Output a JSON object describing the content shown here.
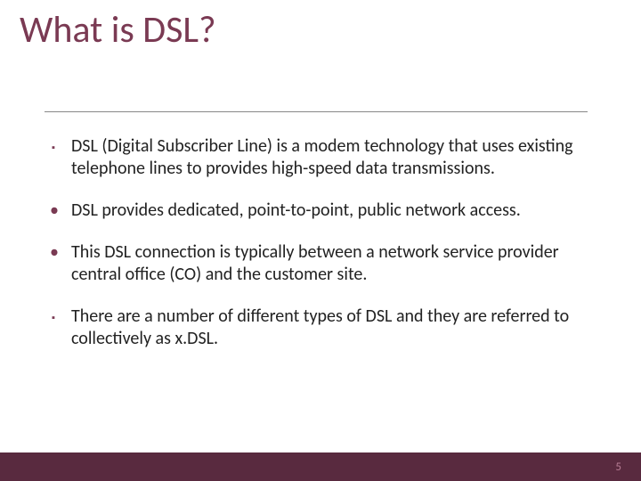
{
  "title": {
    "text": "What is DSL?",
    "color": "#7a3a53",
    "fontsize": 42
  },
  "divider": {
    "color": "#888888"
  },
  "bullets": [
    {
      "marker": "square",
      "marker_glyph": "▪",
      "marker_color": "#7a3a53",
      "text": "DSL (Digital Subscriber Line) is a modem technology that uses existing telephone lines to provides high-speed data transmissions."
    },
    {
      "marker": "dot",
      "marker_glyph": "•",
      "marker_color": "#7a3a53",
      "text": "DSL provides dedicated, point-to-point, public network access."
    },
    {
      "marker": "dot",
      "marker_glyph": "•",
      "marker_color": "#7a3a53",
      "text": "This DSL connection is typically between a network service provider central office (CO) and the customer site."
    },
    {
      "marker": "square",
      "marker_glyph": "▪",
      "marker_color": "#7a3a53",
      "text": "There are a number of different types of DSL and they are referred to collectively as x.DSL."
    }
  ],
  "body_text_color": "#222222",
  "body_fontsize": 20,
  "footer": {
    "bar_color": "#592a3f",
    "page_number": "5",
    "page_number_color": "#b77d94"
  },
  "background_color": "#ffffff"
}
